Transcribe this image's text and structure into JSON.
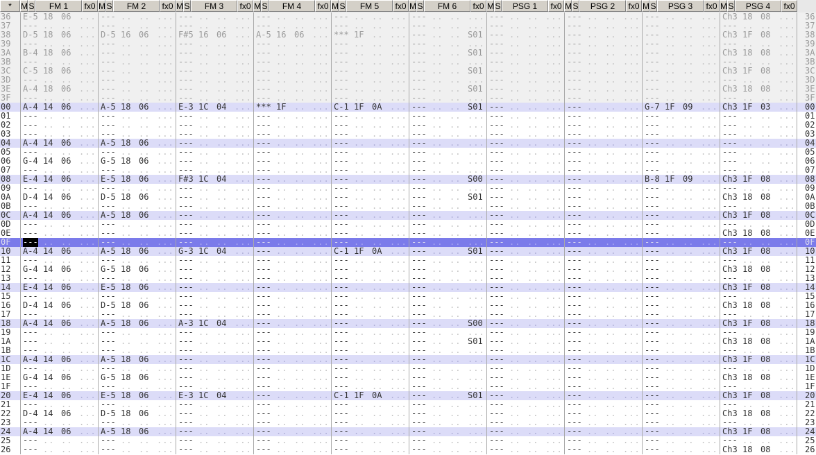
{
  "header": {
    "corner": "*",
    "mute": "M",
    "solo": "S",
    "fx": "fx0",
    "channels": [
      "FM 1",
      "FM 2",
      "FM 3",
      "FM 4",
      "FM 5",
      "FM 6",
      "PSG 1",
      "PSG 2",
      "PSG 3",
      "PSG 4"
    ]
  },
  "placeholders": {
    "note": "---",
    "byte": "..",
    "fx": "..."
  },
  "colors": {
    "past_bg": "#f0f0f0",
    "highlight_bg": "#dcdcf8",
    "cursor_bg": "#7b7bea",
    "header_bg": "#d4d0c8"
  },
  "cursor": {
    "row": "0F",
    "channel": "FM 1"
  },
  "past_rows": [
    {
      "row": "36",
      "cells": {
        "0": "E-5|18|06|",
        "9": "Ch3|18|08|"
      }
    },
    {
      "row": "37",
      "cells": {}
    },
    {
      "row": "38",
      "cells": {
        "0": "D-5|18|06|",
        "1": "D-5|16|06|",
        "2": "F#5|16|06|",
        "3": "A-5|16|06|",
        "4": "***|1F||",
        "5": "|||S01",
        "9": "Ch3|1F|08|"
      }
    },
    {
      "row": "39",
      "cells": {}
    },
    {
      "row": "3A",
      "cells": {
        "0": "B-4|18|06|",
        "5": "|||S01",
        "9": "Ch3|18|08|"
      }
    },
    {
      "row": "3B",
      "cells": {}
    },
    {
      "row": "3C",
      "cells": {
        "0": "C-5|18|06|",
        "5": "|||S01",
        "9": "Ch3|1F|08|"
      }
    },
    {
      "row": "3D",
      "cells": {}
    },
    {
      "row": "3E",
      "cells": {
        "0": "A-4|18|06|",
        "5": "|||S01",
        "9": "Ch3|18|08|"
      }
    },
    {
      "row": "3F",
      "cells": {}
    }
  ],
  "rows": [
    {
      "row": "00",
      "cells": {
        "0": "A-4|14|06|",
        "1": "A-5|18|06|",
        "2": "E-3|1C|04|",
        "3": "***|1F||",
        "4": "C-1|1F|0A|",
        "5": "|||S01",
        "8": "G-7|1F|09|",
        "9": "Ch3|1F|03|"
      }
    },
    {
      "row": "01",
      "cells": {}
    },
    {
      "row": "02",
      "cells": {}
    },
    {
      "row": "03",
      "cells": {}
    },
    {
      "row": "04",
      "cells": {
        "0": "A-4|14|06|",
        "1": "A-5|18|06|"
      }
    },
    {
      "row": "05",
      "cells": {}
    },
    {
      "row": "06",
      "cells": {
        "0": "G-4|14|06|",
        "1": "G-5|18|06|"
      }
    },
    {
      "row": "07",
      "cells": {}
    },
    {
      "row": "08",
      "cells": {
        "0": "E-4|14|06|",
        "1": "E-5|18|06|",
        "2": "F#3|1C|04|",
        "5": "|||S00",
        "8": "B-8|1F|09|",
        "9": "Ch3|1F|08|"
      }
    },
    {
      "row": "09",
      "cells": {}
    },
    {
      "row": "0A",
      "cells": {
        "0": "D-4|14|06|",
        "1": "D-5|18|06|",
        "5": "|||S01",
        "9": "Ch3|18|08|"
      }
    },
    {
      "row": "0B",
      "cells": {}
    },
    {
      "row": "0C",
      "cells": {
        "0": "A-4|14|06|",
        "1": "A-5|18|06|",
        "9": "Ch3|1F|08|"
      }
    },
    {
      "row": "0D",
      "cells": {}
    },
    {
      "row": "0E",
      "cells": {
        "9": "Ch3|18|08|"
      }
    },
    {
      "row": "0F",
      "cells": {}
    },
    {
      "row": "10",
      "cells": {
        "0": "A-4|14|06|",
        "1": "A-5|18|06|",
        "2": "G-3|1C|04|",
        "4": "C-1|1F|0A|",
        "5": "|||S01",
        "9": "Ch3|1F|08|"
      }
    },
    {
      "row": "11",
      "cells": {}
    },
    {
      "row": "12",
      "cells": {
        "0": "G-4|14|06|",
        "1": "G-5|18|06|",
        "9": "Ch3|18|08|"
      }
    },
    {
      "row": "13",
      "cells": {}
    },
    {
      "row": "14",
      "cells": {
        "0": "E-4|14|06|",
        "1": "E-5|18|06|",
        "9": "Ch3|1F|08|"
      }
    },
    {
      "row": "15",
      "cells": {}
    },
    {
      "row": "16",
      "cells": {
        "0": "D-4|14|06|",
        "1": "D-5|18|06|",
        "9": "Ch3|18|08|"
      }
    },
    {
      "row": "17",
      "cells": {}
    },
    {
      "row": "18",
      "cells": {
        "0": "A-4|14|06|",
        "1": "A-5|18|06|",
        "2": "A-3|1C|04|",
        "5": "|||S00",
        "9": "Ch3|1F|08|"
      }
    },
    {
      "row": "19",
      "cells": {}
    },
    {
      "row": "1A",
      "cells": {
        "5": "|||S01",
        "9": "Ch3|18|08|"
      }
    },
    {
      "row": "1B",
      "cells": {}
    },
    {
      "row": "1C",
      "cells": {
        "0": "A-4|14|06|",
        "1": "A-5|18|06|",
        "9": "Ch3|1F|08|"
      }
    },
    {
      "row": "1D",
      "cells": {}
    },
    {
      "row": "1E",
      "cells": {
        "0": "G-4|14|06|",
        "1": "G-5|18|06|",
        "9": "Ch3|18|08|"
      }
    },
    {
      "row": "1F",
      "cells": {}
    },
    {
      "row": "20",
      "cells": {
        "0": "E-4|14|06|",
        "1": "E-5|18|06|",
        "2": "E-3|1C|04|",
        "4": "C-1|1F|0A|",
        "5": "|||S01",
        "9": "Ch3|1F|08|"
      }
    },
    {
      "row": "21",
      "cells": {}
    },
    {
      "row": "22",
      "cells": {
        "0": "D-4|14|06|",
        "1": "D-5|18|06|",
        "9": "Ch3|18|08|"
      }
    },
    {
      "row": "23",
      "cells": {}
    },
    {
      "row": "24",
      "cells": {
        "0": "A-4|14|06|",
        "1": "A-5|18|06|",
        "9": "Ch3|1F|08|"
      }
    },
    {
      "row": "25",
      "cells": {}
    },
    {
      "row": "26",
      "cells": {
        "9": "Ch3|18|08|"
      }
    }
  ]
}
